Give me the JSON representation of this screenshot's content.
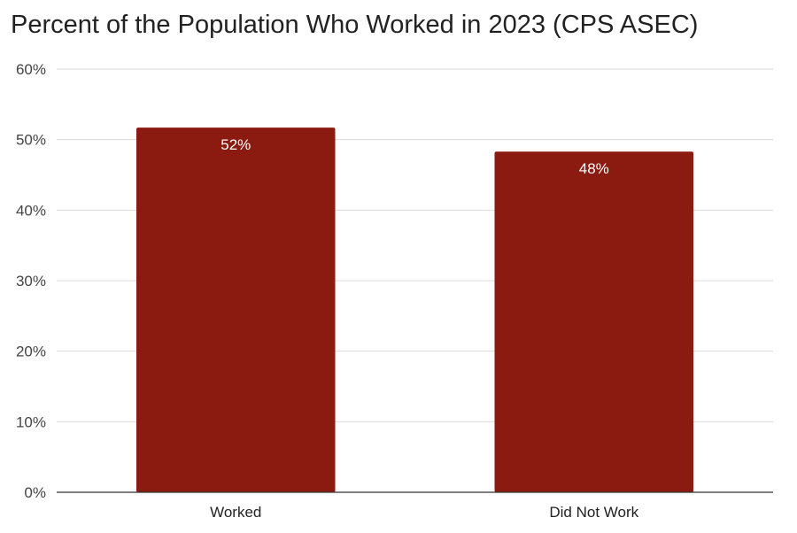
{
  "chart_data": {
    "type": "bar",
    "title": "Percent of the Population Who Worked in 2023 (CPS ASEC)",
    "xlabel": "",
    "ylabel": "",
    "categories": [
      "Worked",
      "Did Not Work"
    ],
    "values": [
      51.7,
      48.3
    ],
    "data_labels": [
      "52%",
      "48%"
    ],
    "ylim": [
      0,
      60
    ],
    "yticks": [
      0,
      10,
      20,
      30,
      40,
      50,
      60
    ],
    "ytick_labels": [
      "0%",
      "10%",
      "20%",
      "30%",
      "40%",
      "50%",
      "60%"
    ],
    "grid": true,
    "legend": "none",
    "colors": {
      "bar": "#8b1a10",
      "grid": "#d9d9d9",
      "axis": "#333333"
    }
  }
}
